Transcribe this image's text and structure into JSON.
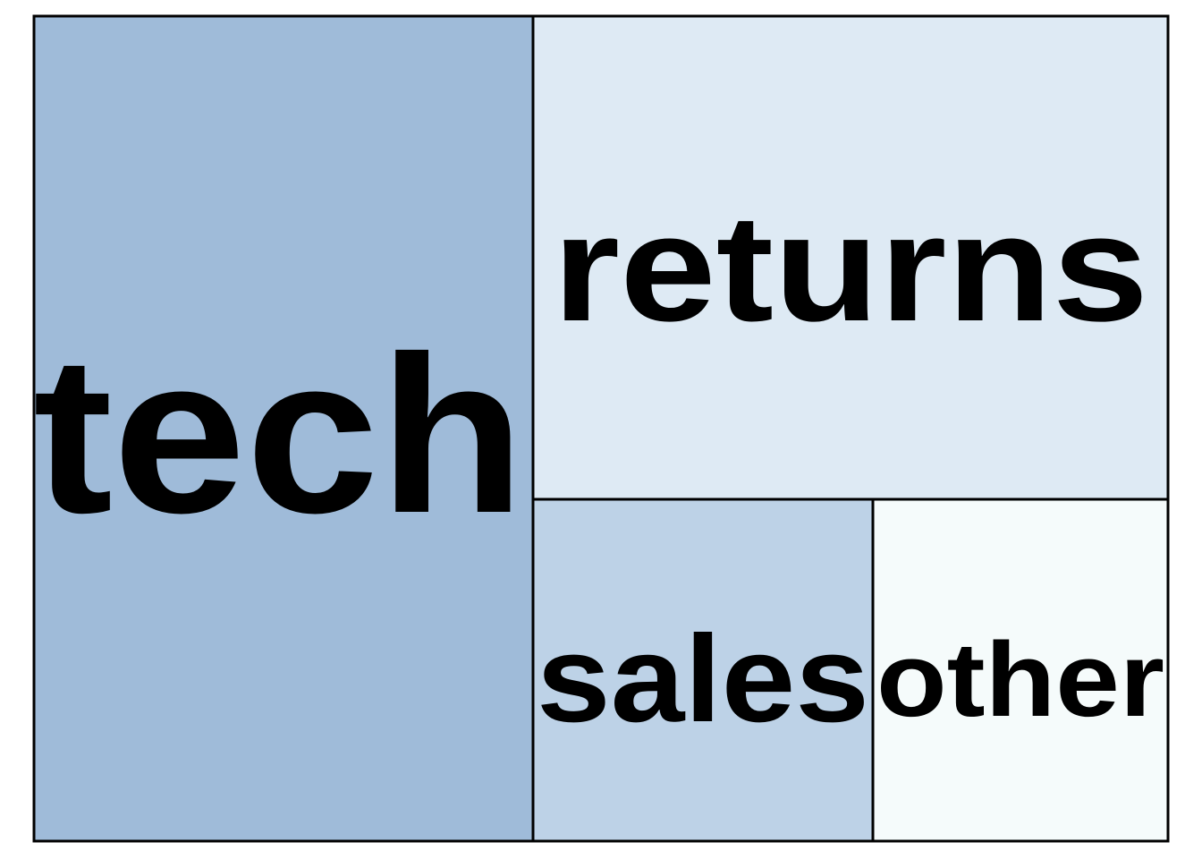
{
  "chart_data": {
    "type": "treemap",
    "title": "",
    "items": [
      {
        "label": "tech",
        "color": "#9fbbd9"
      },
      {
        "label": "returns",
        "color": "#deeaf4"
      },
      {
        "label": "sales",
        "color": "#bdd2e7"
      },
      {
        "label": "other",
        "color": "#f5fbfb"
      }
    ],
    "border_color": "#000000"
  }
}
